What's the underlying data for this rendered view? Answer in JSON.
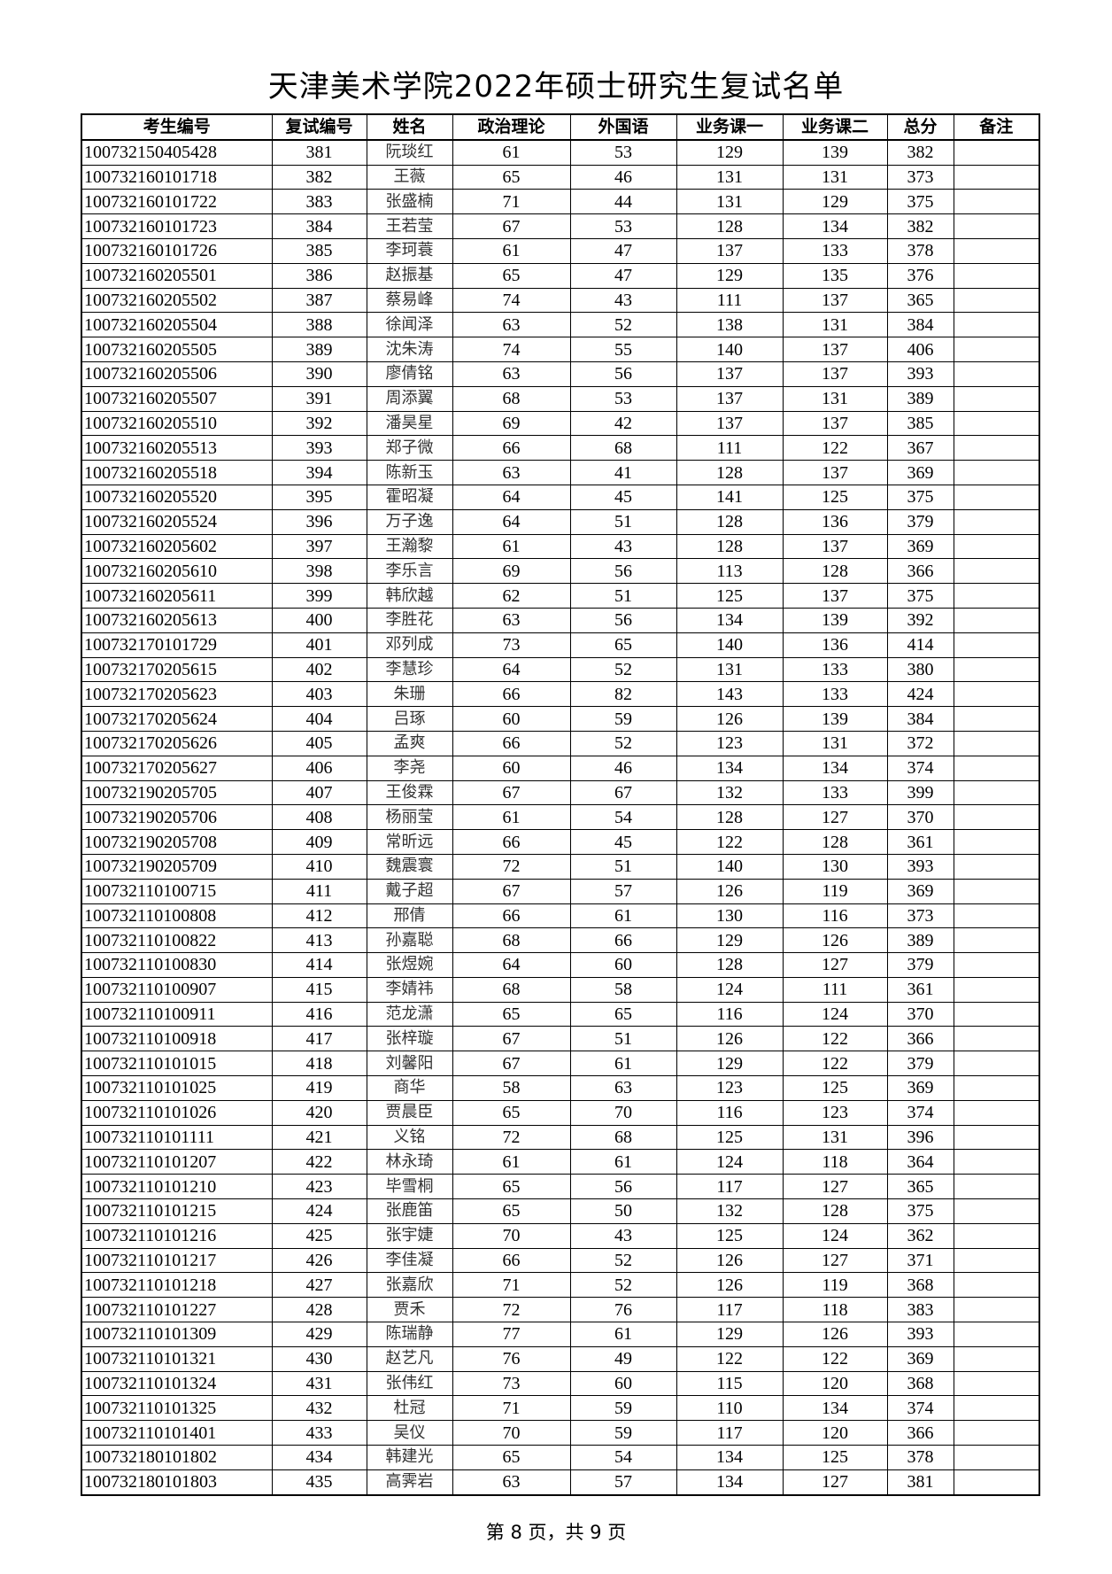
{
  "title": "天津美术学院2022年硕士研究生复试名单",
  "columns": [
    "考生编号",
    "复试编号",
    "姓名",
    "政治理论",
    "外国语",
    "业务课一",
    "业务课二",
    "总分",
    "备注"
  ],
  "rows": [
    [
      "100732150405428",
      "381",
      "阮琰红",
      "61",
      "53",
      "129",
      "139",
      "382",
      ""
    ],
    [
      "100732160101718",
      "382",
      "王薇",
      "65",
      "46",
      "131",
      "131",
      "373",
      ""
    ],
    [
      "100732160101722",
      "383",
      "张盛楠",
      "71",
      "44",
      "131",
      "129",
      "375",
      ""
    ],
    [
      "100732160101723",
      "384",
      "王若莹",
      "67",
      "53",
      "128",
      "134",
      "382",
      ""
    ],
    [
      "100732160101726",
      "385",
      "李珂蓑",
      "61",
      "47",
      "137",
      "133",
      "378",
      ""
    ],
    [
      "100732160205501",
      "386",
      "赵振基",
      "65",
      "47",
      "129",
      "135",
      "376",
      ""
    ],
    [
      "100732160205502",
      "387",
      "蔡易峰",
      "74",
      "43",
      "111",
      "137",
      "365",
      ""
    ],
    [
      "100732160205504",
      "388",
      "徐闻泽",
      "63",
      "52",
      "138",
      "131",
      "384",
      ""
    ],
    [
      "100732160205505",
      "389",
      "沈朱涛",
      "74",
      "55",
      "140",
      "137",
      "406",
      ""
    ],
    [
      "100732160205506",
      "390",
      "廖倩铭",
      "63",
      "56",
      "137",
      "137",
      "393",
      ""
    ],
    [
      "100732160205507",
      "391",
      "周添翼",
      "68",
      "53",
      "137",
      "131",
      "389",
      ""
    ],
    [
      "100732160205510",
      "392",
      "潘昊星",
      "69",
      "42",
      "137",
      "137",
      "385",
      ""
    ],
    [
      "100732160205513",
      "393",
      "郑子微",
      "66",
      "68",
      "111",
      "122",
      "367",
      ""
    ],
    [
      "100732160205518",
      "394",
      "陈新玉",
      "63",
      "41",
      "128",
      "137",
      "369",
      ""
    ],
    [
      "100732160205520",
      "395",
      "霍昭凝",
      "64",
      "45",
      "141",
      "125",
      "375",
      ""
    ],
    [
      "100732160205524",
      "396",
      "万子逸",
      "64",
      "51",
      "128",
      "136",
      "379",
      ""
    ],
    [
      "100732160205602",
      "397",
      "王瀚黎",
      "61",
      "43",
      "128",
      "137",
      "369",
      ""
    ],
    [
      "100732160205610",
      "398",
      "李乐言",
      "69",
      "56",
      "113",
      "128",
      "366",
      ""
    ],
    [
      "100732160205611",
      "399",
      "韩欣越",
      "62",
      "51",
      "125",
      "137",
      "375",
      ""
    ],
    [
      "100732160205613",
      "400",
      "李胜花",
      "63",
      "56",
      "134",
      "139",
      "392",
      ""
    ],
    [
      "100732170101729",
      "401",
      "邓列成",
      "73",
      "65",
      "140",
      "136",
      "414",
      ""
    ],
    [
      "100732170205615",
      "402",
      "李慧珍",
      "64",
      "52",
      "131",
      "133",
      "380",
      ""
    ],
    [
      "100732170205623",
      "403",
      "朱珊",
      "66",
      "82",
      "143",
      "133",
      "424",
      ""
    ],
    [
      "100732170205624",
      "404",
      "吕琢",
      "60",
      "59",
      "126",
      "139",
      "384",
      ""
    ],
    [
      "100732170205626",
      "405",
      "孟爽",
      "66",
      "52",
      "123",
      "131",
      "372",
      ""
    ],
    [
      "100732170205627",
      "406",
      "李尧",
      "60",
      "46",
      "134",
      "134",
      "374",
      ""
    ],
    [
      "100732190205705",
      "407",
      "王俊霖",
      "67",
      "67",
      "132",
      "133",
      "399",
      ""
    ],
    [
      "100732190205706",
      "408",
      "杨丽莹",
      "61",
      "54",
      "128",
      "127",
      "370",
      ""
    ],
    [
      "100732190205708",
      "409",
      "常昕远",
      "66",
      "45",
      "122",
      "128",
      "361",
      ""
    ],
    [
      "100732190205709",
      "410",
      "魏震寰",
      "72",
      "51",
      "140",
      "130",
      "393",
      ""
    ],
    [
      "100732110100715",
      "411",
      "戴子超",
      "67",
      "57",
      "126",
      "119",
      "369",
      ""
    ],
    [
      "100732110100808",
      "412",
      "邢倩",
      "66",
      "61",
      "130",
      "116",
      "373",
      ""
    ],
    [
      "100732110100822",
      "413",
      "孙嘉聪",
      "68",
      "66",
      "129",
      "126",
      "389",
      ""
    ],
    [
      "100732110100830",
      "414",
      "张煜婉",
      "64",
      "60",
      "128",
      "127",
      "379",
      ""
    ],
    [
      "100732110100907",
      "415",
      "李婧祎",
      "68",
      "58",
      "124",
      "111",
      "361",
      ""
    ],
    [
      "100732110100911",
      "416",
      "范龙潇",
      "65",
      "65",
      "116",
      "124",
      "370",
      ""
    ],
    [
      "100732110100918",
      "417",
      "张梓璇",
      "67",
      "51",
      "126",
      "122",
      "366",
      ""
    ],
    [
      "100732110101015",
      "418",
      "刘馨阳",
      "67",
      "61",
      "129",
      "122",
      "379",
      ""
    ],
    [
      "100732110101025",
      "419",
      "商华",
      "58",
      "63",
      "123",
      "125",
      "369",
      ""
    ],
    [
      "100732110101026",
      "420",
      "贾晨臣",
      "65",
      "70",
      "116",
      "123",
      "374",
      ""
    ],
    [
      "100732110101111",
      "421",
      "义铭",
      "72",
      "68",
      "125",
      "131",
      "396",
      ""
    ],
    [
      "100732110101207",
      "422",
      "林永琦",
      "61",
      "61",
      "124",
      "118",
      "364",
      ""
    ],
    [
      "100732110101210",
      "423",
      "毕雪桐",
      "65",
      "56",
      "117",
      "127",
      "365",
      ""
    ],
    [
      "100732110101215",
      "424",
      "张鹿笛",
      "65",
      "50",
      "132",
      "128",
      "375",
      ""
    ],
    [
      "100732110101216",
      "425",
      "张宇婕",
      "70",
      "43",
      "125",
      "124",
      "362",
      ""
    ],
    [
      "100732110101217",
      "426",
      "李佳凝",
      "66",
      "52",
      "126",
      "127",
      "371",
      ""
    ],
    [
      "100732110101218",
      "427",
      "张嘉欣",
      "71",
      "52",
      "126",
      "119",
      "368",
      ""
    ],
    [
      "100732110101227",
      "428",
      "贾禾",
      "72",
      "76",
      "117",
      "118",
      "383",
      ""
    ],
    [
      "100732110101309",
      "429",
      "陈瑞静",
      "77",
      "61",
      "129",
      "126",
      "393",
      ""
    ],
    [
      "100732110101321",
      "430",
      "赵艺凡",
      "76",
      "49",
      "122",
      "122",
      "369",
      ""
    ],
    [
      "100732110101324",
      "431",
      "张伟红",
      "73",
      "60",
      "115",
      "120",
      "368",
      ""
    ],
    [
      "100732110101325",
      "432",
      "杜冠",
      "71",
      "59",
      "110",
      "134",
      "374",
      ""
    ],
    [
      "100732110101401",
      "433",
      "吴仪",
      "70",
      "59",
      "117",
      "120",
      "366",
      ""
    ],
    [
      "100732180101802",
      "434",
      "韩建光",
      "65",
      "54",
      "134",
      "125",
      "378",
      ""
    ],
    [
      "100732180101803",
      "435",
      "高霁岩",
      "63",
      "57",
      "134",
      "127",
      "381",
      ""
    ]
  ],
  "footer": "第 8 页，共 9 页"
}
